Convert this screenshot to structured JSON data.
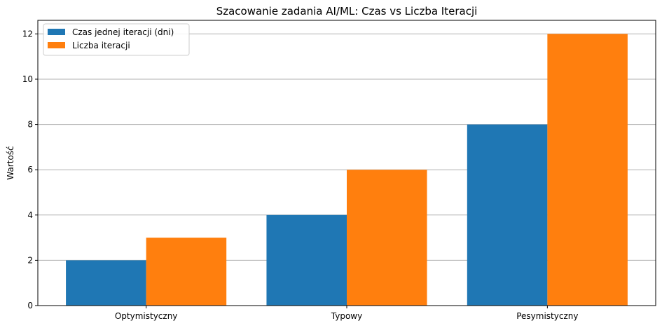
{
  "chart_data": {
    "type": "bar",
    "title": "Szacowanie zadania AI/ML: Czas vs Liczba Iteracji",
    "xlabel": "",
    "ylabel": "Wartość",
    "categories": [
      "Optymistyczny",
      "Typowy",
      "Pesymistyczny"
    ],
    "series": [
      {
        "name": "Czas jednej iteracji (dni)",
        "values": [
          2,
          4,
          8
        ],
        "color": "#1f77b4"
      },
      {
        "name": "Liczba iteracji",
        "values": [
          3,
          6,
          12
        ],
        "color": "#ff7f0e"
      }
    ],
    "ylim": [
      0,
      12.6
    ],
    "yticks": [
      0,
      2,
      4,
      6,
      8,
      10,
      12
    ],
    "grid": "y-major",
    "legend_position": "top-left"
  }
}
